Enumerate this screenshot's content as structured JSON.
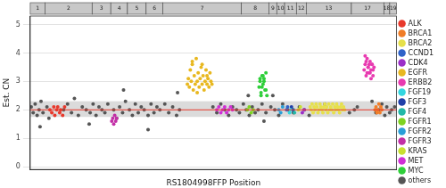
{
  "chart_data": {
    "type": "scatter",
    "x_label": "RS1804998FFP Position",
    "y_label": "Est. CN",
    "xlim": [
      0,
      373
    ],
    "ylim": [
      -0.1,
      5.3
    ],
    "yticks": [
      0,
      1,
      2,
      3,
      4,
      5
    ],
    "grid": true,
    "legend": "right",
    "tick_labels": "y",
    "marker": "circle",
    "reference_line": 2,
    "band": [
      1.75,
      2.3
    ],
    "chromosomes": [
      {
        "label": "1",
        "start": 0,
        "end": 15
      },
      {
        "label": "2",
        "start": 15,
        "end": 63
      },
      {
        "label": "3",
        "start": 63,
        "end": 82
      },
      {
        "label": "4",
        "start": 82,
        "end": 99
      },
      {
        "label": "5",
        "start": 99,
        "end": 118
      },
      {
        "label": "6",
        "start": 118,
        "end": 135
      },
      {
        "label": "7",
        "start": 135,
        "end": 215
      },
      {
        "label": "8",
        "start": 215,
        "end": 243
      },
      {
        "label": "9",
        "start": 243,
        "end": 251
      },
      {
        "label": "10",
        "start": 251,
        "end": 259
      },
      {
        "label": "11",
        "start": 259,
        "end": 271
      },
      {
        "label": "12",
        "start": 271,
        "end": 281
      },
      {
        "label": "13",
        "start": 281,
        "end": 327
      },
      {
        "label": "17",
        "start": 327,
        "end": 360
      },
      {
        "label": "18",
        "start": 360,
        "end": 366
      },
      {
        "label": "19",
        "start": 366,
        "end": 373
      }
    ],
    "series": [
      {
        "name": "ALK",
        "color": "#e8392c",
        "x": [
          20,
          22,
          24,
          25,
          27,
          28,
          30,
          31,
          33,
          35
        ],
        "values": [
          2.0,
          1.9,
          2.1,
          1.8,
          2.0,
          2.1,
          1.9,
          2.0,
          1.8,
          2.1
        ]
      },
      {
        "name": "BRCA1",
        "color": "#f07d28",
        "x": [
          351,
          352,
          353,
          354,
          355,
          356,
          357,
          358
        ],
        "values": [
          2.0,
          2.1,
          1.9,
          2.0,
          2.2,
          1.9,
          2.1,
          2.0
        ]
      },
      {
        "name": "BRCA2",
        "color": "#e6e04a",
        "x": [
          285,
          286,
          287,
          288,
          289,
          290,
          291,
          292,
          293,
          294,
          295,
          296,
          297,
          298,
          299,
          300,
          301,
          302,
          303,
          304,
          305,
          306,
          307,
          308,
          309,
          310,
          311,
          312,
          313,
          314,
          315,
          316,
          317,
          318,
          319,
          320
        ],
        "values": [
          2.1,
          2.0,
          2.2,
          1.9,
          2.1,
          2.0,
          2.2,
          2.1,
          1.9,
          2.0,
          2.2,
          2.1,
          2.0,
          1.9,
          2.1,
          2.2,
          2.0,
          2.1,
          1.9,
          2.2,
          2.0,
          2.1,
          2.0,
          2.2,
          1.9,
          2.1,
          2.0,
          2.2,
          2.1,
          2.0,
          1.9,
          2.1,
          2.2,
          2.0,
          2.1,
          2.0
        ]
      },
      {
        "name": "CCND1",
        "color": "#2f62c8",
        "x": [
          261,
          262
        ],
        "values": [
          2.0,
          2.1
        ]
      },
      {
        "name": "CDK4",
        "color": "#9b2fc8",
        "x": [
          277,
          279
        ],
        "values": [
          1.9,
          2.0
        ]
      },
      {
        "name": "EGFR",
        "color": "#e8b820",
        "x": [
          160,
          161,
          162,
          163,
          164,
          165,
          166,
          167,
          168,
          169,
          170,
          171,
          172,
          173,
          174,
          175,
          176,
          177,
          178,
          179,
          180,
          181,
          182,
          183,
          184,
          185,
          165,
          170,
          175,
          180
        ],
        "values": [
          2.9,
          3.1,
          2.8,
          3.4,
          3.0,
          3.6,
          2.7,
          3.2,
          2.9,
          3.8,
          3.0,
          3.3,
          2.8,
          3.1,
          3.5,
          2.9,
          3.2,
          2.7,
          3.0,
          3.4,
          2.9,
          3.1,
          2.8,
          3.3,
          3.0,
          2.9,
          3.7,
          2.6,
          3.6,
          3.2
        ]
      },
      {
        "name": "ERBB2",
        "color": "#e83ab0",
        "x": [
          340,
          341,
          342,
          343,
          344,
          345,
          346,
          347,
          348,
          349,
          350,
          341,
          343,
          345,
          347,
          349,
          342,
          344,
          346,
          348
        ],
        "values": [
          3.4,
          3.6,
          3.2,
          3.8,
          3.5,
          3.3,
          3.7,
          3.4,
          3.6,
          3.2,
          3.5,
          3.9,
          3.3,
          3.6,
          3.1,
          3.4,
          3.7,
          3.5,
          3.3,
          3.6
        ]
      },
      {
        "name": "FGF19",
        "color": "#33d6e0",
        "x": [
          264,
          265
        ],
        "values": [
          1.9,
          2.0
        ]
      },
      {
        "name": "FGF3",
        "color": "#1f3fa8",
        "x": [
          266,
          267
        ],
        "values": [
          2.1,
          2.0
        ]
      },
      {
        "name": "FGF4",
        "color": "#22b8a8",
        "x": [
          268,
          269
        ],
        "values": [
          2.0,
          1.9
        ]
      },
      {
        "name": "FGFR1",
        "color": "#7ed321",
        "x": [
          221,
          223,
          225,
          227
        ],
        "values": [
          2.0,
          2.1,
          1.9,
          2.0
        ]
      },
      {
        "name": "FGFR2",
        "color": "#2a9fd8",
        "x": [
          253,
          255,
          257
        ],
        "values": [
          2.0,
          1.9,
          2.1
        ]
      },
      {
        "name": "FGFR3",
        "color": "#c22fa6",
        "x": [
          83,
          84,
          85,
          86,
          87,
          88
        ],
        "values": [
          1.6,
          1.7,
          1.5,
          1.8,
          1.6,
          1.7
        ]
      },
      {
        "name": "KRAS",
        "color": "#c8e030",
        "x": [
          273,
          275
        ],
        "values": [
          2.0,
          2.1
        ]
      },
      {
        "name": "MET",
        "color": "#d02fd6",
        "x": [
          190,
          192,
          194,
          196,
          198,
          200,
          202,
          204,
          206
        ],
        "values": [
          2.0,
          2.1,
          1.9,
          2.0,
          2.1,
          1.9,
          2.0,
          2.1,
          2.0
        ]
      },
      {
        "name": "MYC",
        "color": "#2fcf3a",
        "x": [
          233,
          234,
          235,
          236,
          237,
          238,
          239,
          240,
          241,
          234,
          236,
          238,
          240,
          235,
          237
        ],
        "values": [
          2.8,
          3.0,
          2.6,
          3.2,
          2.9,
          3.1,
          2.7,
          3.3,
          2.5,
          3.1,
          2.8,
          3.0,
          2.7,
          2.5,
          3.2
        ]
      },
      {
        "name": "others",
        "color": "#555555",
        "x": [
          1,
          3,
          5,
          7,
          9,
          11,
          13,
          17,
          19,
          34,
          38,
          42,
          45,
          49,
          53,
          57,
          61,
          64,
          67,
          70,
          73,
          76,
          79,
          85,
          88,
          91,
          94,
          97,
          101,
          104,
          107,
          110,
          113,
          116,
          120,
          123,
          126,
          129,
          132,
          137,
          141,
          145,
          149,
          152,
          186,
          190,
          194,
          198,
          202,
          206,
          210,
          213,
          217,
          220,
          223,
          226,
          229,
          232,
          236,
          240,
          245,
          249,
          253,
          257,
          262,
          268,
          274,
          279,
          284,
          300,
          325,
          330,
          333,
          348,
          352,
          355,
          358,
          361,
          363,
          366,
          368,
          371,
          150,
          60,
          120,
          222,
          95,
          10,
          238,
          247
        ],
        "values": [
          2.1,
          1.9,
          2.2,
          1.8,
          2.0,
          2.3,
          1.9,
          2.1,
          1.7,
          2.0,
          2.2,
          1.9,
          2.4,
          1.8,
          2.1,
          2.0,
          1.9,
          2.2,
          1.8,
          2.1,
          2.0,
          1.9,
          2.2,
          2.0,
          1.7,
          2.1,
          1.9,
          2.3,
          2.0,
          1.8,
          2.2,
          1.9,
          2.1,
          2.0,
          1.8,
          2.2,
          1.9,
          2.1,
          2.0,
          2.2,
          1.9,
          2.1,
          1.8,
          2.0,
          2.1,
          1.9,
          2.2,
          2.0,
          1.8,
          2.1,
          2.0,
          1.9,
          2.2,
          2.0,
          1.8,
          2.1,
          1.9,
          2.0,
          2.2,
          1.9,
          2.1,
          2.0,
          1.8,
          2.2,
          2.0,
          1.9,
          2.1,
          2.0,
          1.8,
          2.2,
          1.9,
          2.0,
          2.1,
          2.3,
          1.9,
          2.0,
          2.2,
          1.8,
          2.1,
          1.9,
          2.0,
          2.1,
          2.6,
          1.5,
          1.3,
          2.5,
          2.7,
          1.4,
          1.6,
          2.5
        ]
      }
    ]
  }
}
